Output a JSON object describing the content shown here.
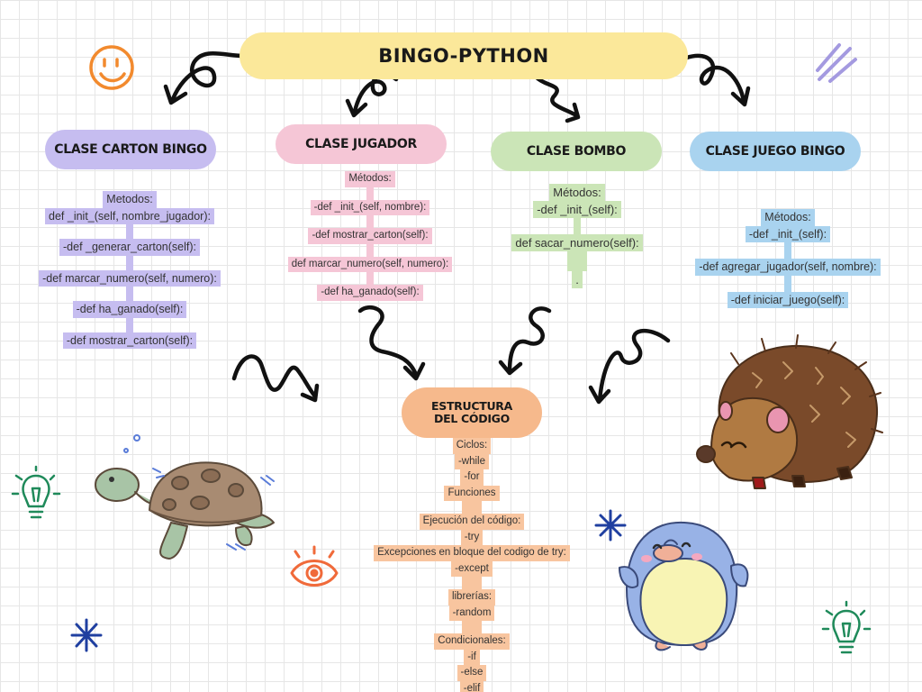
{
  "title": "BINGO-PYTHON",
  "classes": {
    "carton": {
      "label": "CLASE CARTON BINGO",
      "lines": [
        "Metodos:",
        "def _init_(self, nombre_jugador):",
        "",
        "-def _generar_carton(self):",
        "",
        "-def marcar_numero(self, numero):",
        "",
        "-def ha_ganado(self):",
        "",
        "-def mostrar_carton(self):"
      ]
    },
    "jugador": {
      "label": "CLASE JUGADOR",
      "lines": [
        "Métodos:",
        "",
        "-def _init_(self, nombre):",
        "",
        "-def mostrar_carton(self):",
        "",
        "def marcar_numero(self, numero):",
        "",
        "-def ha_ganado(self):"
      ]
    },
    "bombo": {
      "label": "CLASE BOMBO",
      "lines": [
        "Métodos:",
        "-def _init_(self):",
        "",
        "def sacar_numero(self):",
        "",
        "."
      ]
    },
    "juego": {
      "label": "CLASE JUEGO BINGO",
      "lines": [
        "Métodos:",
        "-def _init_(self):",
        "",
        "-def agregar_jugador(self, nombre):",
        "",
        "-def iniciar_juego(self):"
      ]
    }
  },
  "estructura": {
    "label": "ESTRUCTURA DEL CÓDIGO",
    "lines": [
      "Ciclos:",
      "-while",
      "-for",
      "Funciones",
      "",
      "Ejecución del código:",
      "-try",
      "Excepciones en bloque del codigo de try:",
      "-except",
      "",
      "librerías:",
      "-random",
      "",
      "Condicionales:",
      "-if",
      "-else",
      "-elif"
    ]
  },
  "colors": {
    "title": "#fbe89a",
    "carton": "#c6bdf0",
    "jugador": "#f5c6d6",
    "bombo": "#cbe5b7",
    "juego": "#a9d3ef",
    "estructura": "#f6b98c"
  }
}
